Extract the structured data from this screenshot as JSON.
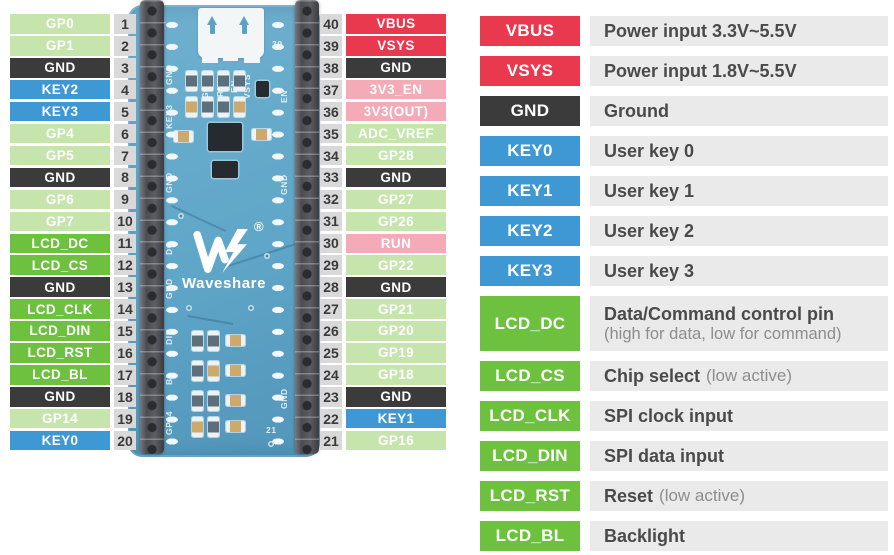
{
  "colors": {
    "gpio": "#c5e5ad",
    "gnd": "#3b3b3b",
    "key": "#3e98d4",
    "lcd": "#6ec13f",
    "power": "#e9394f",
    "sys": "#f5aab7",
    "numbg": "#d9d9d9",
    "descbg": "#eaeaea",
    "board": "#5fa6c8",
    "board_l": "#6fb0cf",
    "board_d": "#5295ba"
  },
  "board": {
    "logo_text": "Waveshare",
    "logo_registered": "®",
    "silkscreen": [
      "1",
      "GND",
      "KEY3",
      "GND",
      "DC",
      "GND",
      "DIN",
      "BL",
      "GP14",
      "GP14",
      "RUN",
      "EN",
      "VSYS",
      "39",
      "EN",
      "GND",
      "GND",
      "21"
    ]
  },
  "pins": {
    "left": [
      {
        "num": "1",
        "label": "GP0",
        "type": "gpio"
      },
      {
        "num": "2",
        "label": "GP1",
        "type": "gpio"
      },
      {
        "num": "3",
        "label": "GND",
        "type": "gnd"
      },
      {
        "num": "4",
        "label": "KEY2",
        "type": "key"
      },
      {
        "num": "5",
        "label": "KEY3",
        "type": "key"
      },
      {
        "num": "6",
        "label": "GP4",
        "type": "gpio"
      },
      {
        "num": "7",
        "label": "GP5",
        "type": "gpio"
      },
      {
        "num": "8",
        "label": "GND",
        "type": "gnd"
      },
      {
        "num": "9",
        "label": "GP6",
        "type": "gpio"
      },
      {
        "num": "10",
        "label": "GP7",
        "type": "gpio"
      },
      {
        "num": "11",
        "label": "LCD_DC",
        "type": "lcd"
      },
      {
        "num": "12",
        "label": "LCD_CS",
        "type": "lcd"
      },
      {
        "num": "13",
        "label": "GND",
        "type": "gnd"
      },
      {
        "num": "14",
        "label": "LCD_CLK",
        "type": "lcd"
      },
      {
        "num": "15",
        "label": "LCD_DIN",
        "type": "lcd"
      },
      {
        "num": "16",
        "label": "LCD_RST",
        "type": "lcd"
      },
      {
        "num": "17",
        "label": "LCD_BL",
        "type": "lcd"
      },
      {
        "num": "18",
        "label": "GND",
        "type": "gnd"
      },
      {
        "num": "19",
        "label": "GP14",
        "type": "gpio"
      },
      {
        "num": "20",
        "label": "KEY0",
        "type": "key"
      }
    ],
    "right": [
      {
        "num": "40",
        "label": "VBUS",
        "type": "power"
      },
      {
        "num": "39",
        "label": "VSYS",
        "type": "power"
      },
      {
        "num": "38",
        "label": "GND",
        "type": "gnd"
      },
      {
        "num": "37",
        "label": "3V3_EN",
        "type": "sys"
      },
      {
        "num": "36",
        "label": "3V3(OUT)",
        "type": "sys"
      },
      {
        "num": "35",
        "label": "ADC_VREF",
        "type": "gpio"
      },
      {
        "num": "34",
        "label": "GP28",
        "type": "gpio"
      },
      {
        "num": "33",
        "label": "GND",
        "type": "gnd"
      },
      {
        "num": "32",
        "label": "GP27",
        "type": "gpio"
      },
      {
        "num": "31",
        "label": "GP26",
        "type": "gpio"
      },
      {
        "num": "30",
        "label": "RUN",
        "type": "sys"
      },
      {
        "num": "29",
        "label": "GP22",
        "type": "gpio"
      },
      {
        "num": "28",
        "label": "GND",
        "type": "gnd"
      },
      {
        "num": "27",
        "label": "GP21",
        "type": "gpio"
      },
      {
        "num": "26",
        "label": "GP20",
        "type": "gpio"
      },
      {
        "num": "25",
        "label": "GP19",
        "type": "gpio"
      },
      {
        "num": "24",
        "label": "GP18",
        "type": "gpio"
      },
      {
        "num": "23",
        "label": "GND",
        "type": "gnd"
      },
      {
        "num": "22",
        "label": "KEY1",
        "type": "key"
      },
      {
        "num": "21",
        "label": "GP16",
        "type": "gpio"
      }
    ]
  },
  "legend": {
    "rows": [
      {
        "label": "VBUS",
        "type": "power",
        "main": "Power input 3.3V~5.5V",
        "note": "",
        "stacked": false
      },
      {
        "label": "VSYS",
        "type": "power",
        "main": "Power input 1.8V~5.5V",
        "note": "",
        "stacked": false
      },
      {
        "label": "GND",
        "type": "gnd",
        "main": "Ground",
        "note": "",
        "stacked": false
      },
      {
        "label": "KEY0",
        "type": "key",
        "main": "User key 0",
        "note": "",
        "stacked": false
      },
      {
        "label": "KEY1",
        "type": "key",
        "main": "User key 1",
        "note": "",
        "stacked": false
      },
      {
        "label": "KEY2",
        "type": "key",
        "main": "User key 2",
        "note": "",
        "stacked": false
      },
      {
        "label": "KEY3",
        "type": "key",
        "main": "User key 3",
        "note": "",
        "stacked": false
      },
      {
        "label": "LCD_DC",
        "type": "lcd",
        "main": "Data/Command control pin",
        "note": "(high for data, low for command)",
        "stacked": true
      },
      {
        "label": "LCD_CS",
        "type": "lcd",
        "main": "Chip select",
        "note": "(low active)",
        "stacked": false
      },
      {
        "label": "LCD_CLK",
        "type": "lcd",
        "main": "SPI clock input",
        "note": "",
        "stacked": false
      },
      {
        "label": "LCD_DIN",
        "type": "lcd",
        "main": "SPI data input",
        "note": "",
        "stacked": false
      },
      {
        "label": "LCD_RST",
        "type": "lcd",
        "main": "Reset",
        "note": "(low active)",
        "stacked": false
      },
      {
        "label": "LCD_BL",
        "type": "lcd",
        "main": "Backlight",
        "note": "",
        "stacked": false
      }
    ]
  }
}
